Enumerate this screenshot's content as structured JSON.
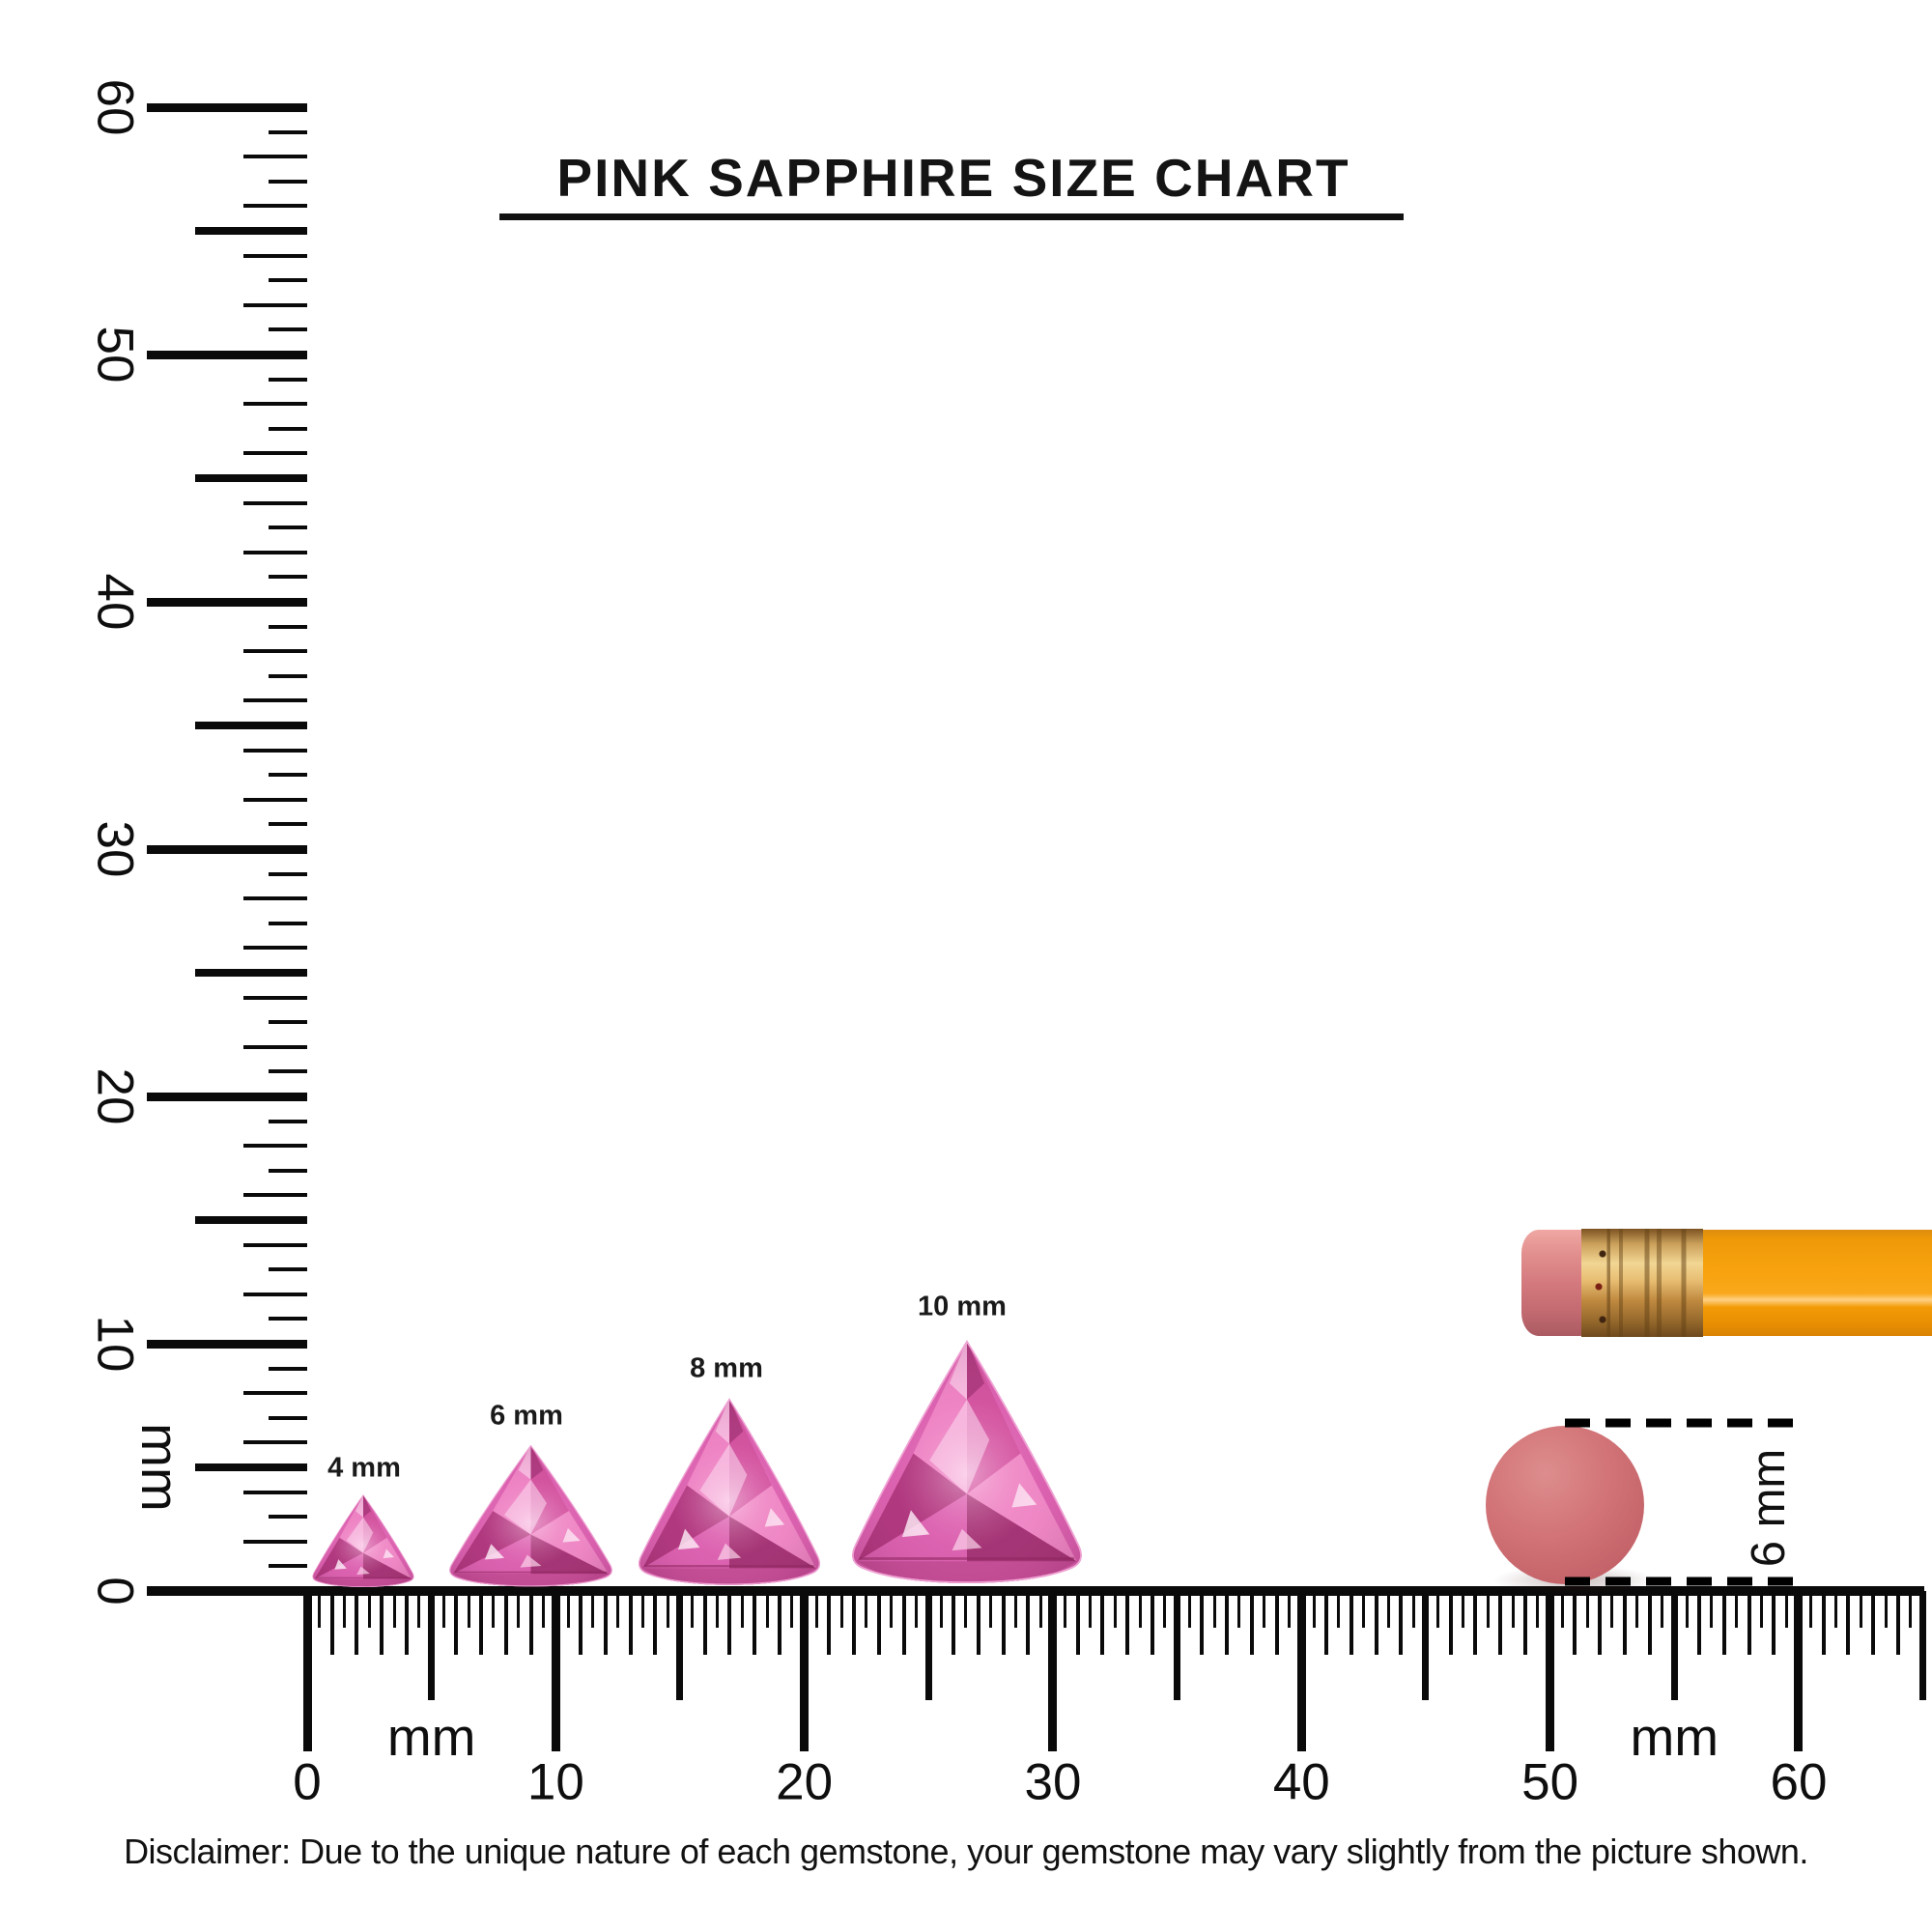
{
  "title": "PINK SAPPHIRE SIZE CHART",
  "rulers": {
    "unit_label": "mm",
    "vertical": {
      "min_mm": 0,
      "max_mm": 60,
      "number_labels": [
        "0",
        "10",
        "20",
        "30",
        "40",
        "50",
        "60"
      ]
    },
    "horizontal": {
      "min_mm": 0,
      "max_mm": 60,
      "number_labels": [
        "0",
        "10",
        "20",
        "30",
        "40",
        "50",
        "60"
      ],
      "unit_label_positions_mm": [
        5,
        55
      ]
    }
  },
  "gems": [
    {
      "label": "4 mm",
      "size_mm": 4
    },
    {
      "label": "6 mm",
      "size_mm": 6
    },
    {
      "label": "8 mm",
      "size_mm": 8
    },
    {
      "label": "10 mm",
      "size_mm": 10
    }
  ],
  "eraser_measurement": {
    "label": "6 mm"
  },
  "disclaimer": "Disclaimer: Due to the unique nature of each gemstone, your gemstone may vary slightly from the picture shown.",
  "colors": {
    "ink": "#0a0a0a",
    "gem_pink_light": "#f7c0e2",
    "gem_pink_mid": "#d95fae",
    "gem_pink_deep": "#9c2d6d",
    "pencil_body_orange": "#f8a30f",
    "pencil_eraser_pink": "#d47a7e",
    "pencil_ferrule_gold": "#e7bd72",
    "eraser_disc_red": "#c26167"
  }
}
